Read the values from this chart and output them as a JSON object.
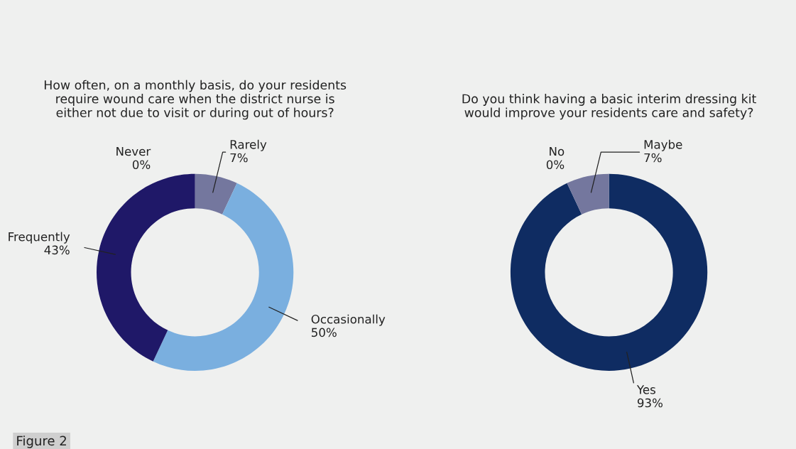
{
  "chart_data": [
    {
      "type": "donut",
      "title": "How often, on a monthly basis, do your residents\nrequire wound care when the district nurse is\neither not due to visit or during out of hours?",
      "categories": [
        "Rarely",
        "Occasionally",
        "Frequently",
        "Never"
      ],
      "values": [
        7,
        50,
        43,
        0
      ],
      "value_labels": [
        "7%",
        "50%",
        "43%",
        "0%"
      ],
      "colors": [
        "#74779e",
        "#7aafdf",
        "#1f1868",
        "#1f1868"
      ],
      "legend": false,
      "annotations": [
        "Figure 2"
      ]
    },
    {
      "type": "donut",
      "title": "Do you think having a basic interim dressing kit\nwould improve your residents care and safety?",
      "categories": [
        "Yes",
        "No",
        "Maybe"
      ],
      "values": [
        93,
        0,
        7
      ],
      "value_labels": [
        "93%",
        "0%",
        "7%"
      ],
      "colors": [
        "#0f2c62",
        "#0f2c62",
        "#74779e"
      ],
      "legend": false
    }
  ]
}
